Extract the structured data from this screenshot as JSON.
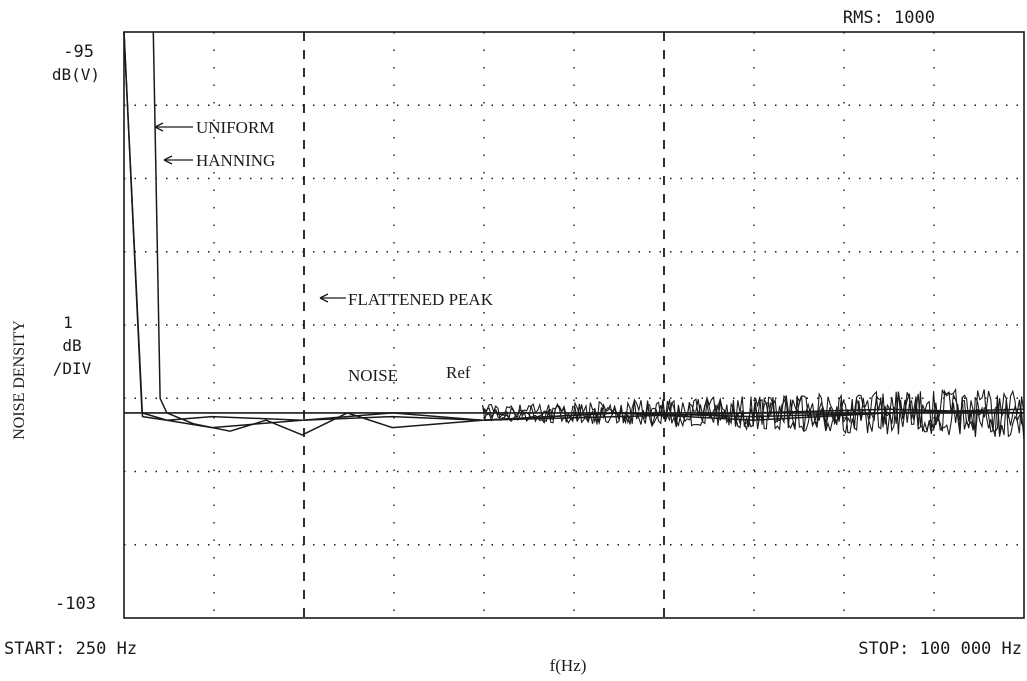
{
  "chart_data": {
    "type": "line",
    "header": {
      "rms_label": "RMS: 1000"
    },
    "ylabel": "NOISE DENSITY",
    "xlabel": "f(Hz)",
    "y_axis": {
      "top_label": "-95",
      "top_unit": "dB(V)",
      "scale_label_1": "1",
      "scale_label_2": "dB",
      "scale_label_3": "/DIV",
      "bottom_label": "-103",
      "ylim": [
        -103,
        -95
      ]
    },
    "x_axis": {
      "start_label": "START:  250 Hz",
      "stop_label": "STOP:  100 000 Hz",
      "xlim": [
        250,
        100000
      ],
      "divisions": 10
    },
    "grid": true,
    "annotations": {
      "uniform": "UNIFORM",
      "hanning": "HANNING",
      "flattened_peak": "FLATTENED PEAK",
      "noise": "NOISE",
      "ref": "Ref"
    },
    "reference_level": -100.2,
    "series": [
      {
        "name": "UNIFORM",
        "x": [
          250,
          2250,
          5000,
          10000,
          20000,
          30000,
          40000,
          55000,
          70000,
          85000,
          100000
        ],
        "y": [
          -95.0,
          -100.2,
          -100.3,
          -100.25,
          -100.3,
          -100.2,
          -100.3,
          -100.25,
          -100.2,
          -100.15,
          -100.2
        ]
      },
      {
        "name": "HANNING",
        "x": [
          250,
          2300,
          5000,
          10000,
          20000,
          30000,
          40000,
          55000,
          70000,
          85000,
          100000
        ],
        "y": [
          -95.0,
          -100.25,
          -100.3,
          -100.4,
          -100.3,
          -100.25,
          -100.3,
          -100.2,
          -100.25,
          -100.2,
          -100.15
        ]
      },
      {
        "name": "FLATTENED PEAK",
        "x": [
          3500,
          4250,
          5000,
          8000,
          12000,
          16000,
          20000,
          25000,
          30000,
          40000,
          55000,
          70000,
          85000,
          100000
        ],
        "y": [
          -95.0,
          -100.0,
          -100.2,
          -100.35,
          -100.45,
          -100.3,
          -100.5,
          -100.2,
          -100.4,
          -100.3,
          -100.2,
          -100.3,
          -100.2,
          -100.2
        ]
      }
    ]
  }
}
